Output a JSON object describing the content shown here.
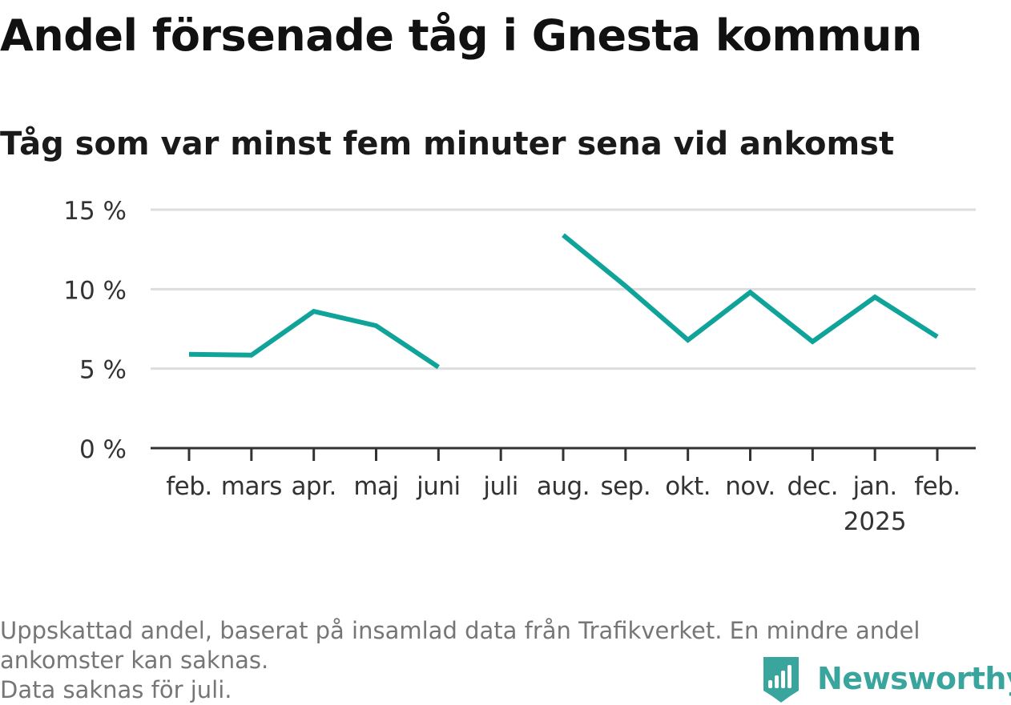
{
  "header": {
    "title": "Andel försenade tåg i Gnesta kommun",
    "subtitle": "Tåg som var minst fem minuter sena vid ankomst"
  },
  "chart_data": {
    "type": "line",
    "title": "Andel försenade tåg i Gnesta kommun",
    "subtitle": "Tåg som var minst fem minuter sena vid ankomst",
    "xlabel": "",
    "ylabel": "",
    "categories": [
      "feb.",
      "mars",
      "apr.",
      "maj",
      "juni",
      "juli",
      "aug.",
      "sep.",
      "okt.",
      "nov.",
      "dec.",
      "jan.",
      "feb."
    ],
    "year_labels": [
      "",
      "",
      "",
      "",
      "",
      "",
      "",
      "",
      "",
      "",
      "",
      "2025",
      ""
    ],
    "series": [
      {
        "values": [
          5.9,
          5.85,
          8.6,
          7.7,
          5.1,
          null,
          13.4,
          10.2,
          6.8,
          9.8,
          6.7,
          9.5,
          7.0
        ]
      }
    ],
    "ylim": [
      0,
      15
    ],
    "yticks": [
      0,
      5,
      10,
      15
    ],
    "ytick_labels": [
      "0 %",
      "5 %",
      "10 %",
      "15 %"
    ],
    "grid": true,
    "line_color": "#0fa39a",
    "grid_color": "#dddddd",
    "axis_color": "#333333"
  },
  "footer": {
    "note_line1": "Uppskattad andel, baserat på insamlad data från Trafikverket. En mindre andel",
    "note_line2": "ankomster kan saknas.",
    "note_line3": "Data saknas för juli.",
    "brand": "Newsworthy",
    "brand_color": "#3aa59d",
    "brand_icon": "bar-chart-logo-icon"
  }
}
